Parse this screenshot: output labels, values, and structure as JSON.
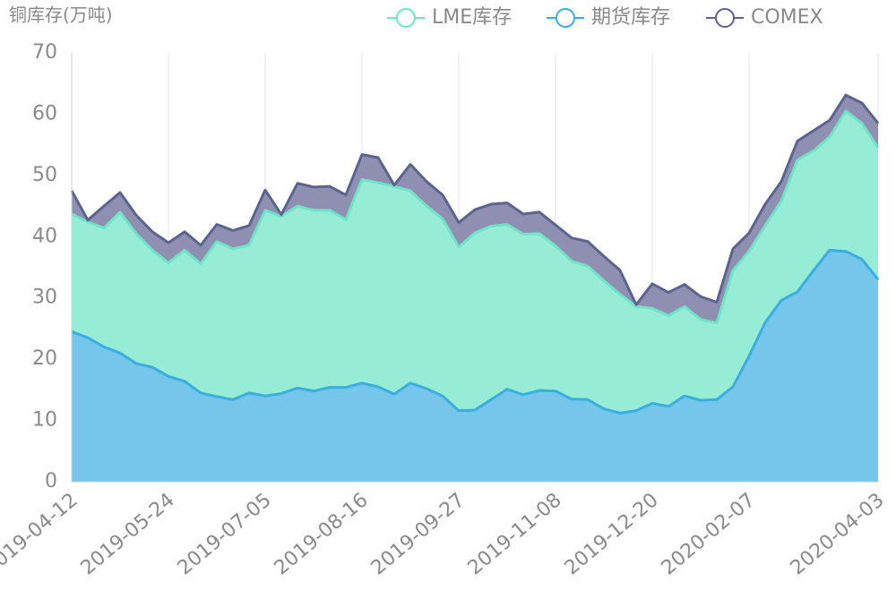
{
  "chart_data": {
    "type": "stacked_area",
    "title": "铜库存(万吨)",
    "categories": [
      "2019-04-12",
      null,
      null,
      null,
      null,
      null,
      "2019-05-24",
      null,
      null,
      null,
      null,
      null,
      "2019-07-05",
      null,
      null,
      null,
      null,
      null,
      "2019-08-16",
      null,
      null,
      null,
      null,
      null,
      "2019-09-27",
      null,
      null,
      null,
      null,
      null,
      "2019-11-08",
      null,
      null,
      null,
      null,
      null,
      "2019-12-20",
      null,
      null,
      null,
      null,
      null,
      "2020-02-07",
      null,
      null,
      null,
      null,
      null,
      null,
      null,
      "2020-04-03"
    ],
    "series": [
      {
        "name": "LME库存",
        "color": "#6fe3c6",
        "fill": "#97ecd5",
        "values": [
          19.2,
          18.9,
          19.4,
          23,
          21.2,
          19.1,
          18.5,
          21.4,
          21.1,
          25.3,
          24.6,
          24.1,
          30.3,
          28.9,
          29.7,
          29.5,
          28.9,
          27.4,
          33.2,
          33.3,
          33.9,
          31.4,
          29.8,
          28.9,
          26.7,
          28.9,
          28.3,
          26.9,
          26.2,
          25.6,
          23.7,
          22.5,
          21.8,
          20.9,
          19.4,
          17,
          15.5,
          14.8,
          14.6,
          13.2,
          12.5,
          19,
          17.1,
          15.8,
          16.2,
          21.5,
          19.5,
          18.5,
          22.9,
          22.2,
          21.5
        ]
      },
      {
        "name": "期货库存",
        "color": "#3aaee0",
        "fill": "#76c5eb",
        "values": [
          24.5,
          23.5,
          22,
          21,
          19.3,
          18.7,
          17.2,
          16.4,
          14.5,
          13.9,
          13.4,
          14.5,
          14,
          14.4,
          15.3,
          14.8,
          15.4,
          15.4,
          16.1,
          15.5,
          14.3,
          16.1,
          15.2,
          14,
          11.6,
          11.7,
          13.4,
          15.1,
          14.2,
          14.9,
          14.8,
          13.5,
          13.4,
          11.9,
          11.2,
          11.6,
          12.8,
          12.3,
          14,
          13.3,
          13.4,
          15.5,
          20.5,
          26,
          29.6,
          31,
          34.5,
          37.8,
          37.6,
          36.3,
          33
        ]
      },
      {
        "name": "COMEX",
        "color": "#5b6491",
        "fill": "#8f90b1",
        "values": [
          3.8,
          0.3,
          3.6,
          3.2,
          3,
          3,
          3.3,
          3,
          3,
          2.8,
          3,
          3.2,
          3.3,
          0.3,
          3.7,
          3.8,
          3.9,
          4,
          4.1,
          4.1,
          0.2,
          4.3,
          4,
          3.9,
          4,
          3.8,
          3.6,
          3.5,
          3.3,
          3.5,
          3.4,
          3.8,
          4,
          4,
          3.9,
          0.3,
          4,
          3.8,
          3.6,
          3.7,
          3.4,
          3.5,
          3,
          3.5,
          3.2,
          3.1,
          3.3,
          2.7,
          2.6,
          3.3,
          4
        ]
      }
    ],
    "ylim": [
      0,
      70
    ],
    "yticks": [
      0,
      10,
      20,
      30,
      40,
      50,
      60,
      70
    ],
    "grid": true
  }
}
